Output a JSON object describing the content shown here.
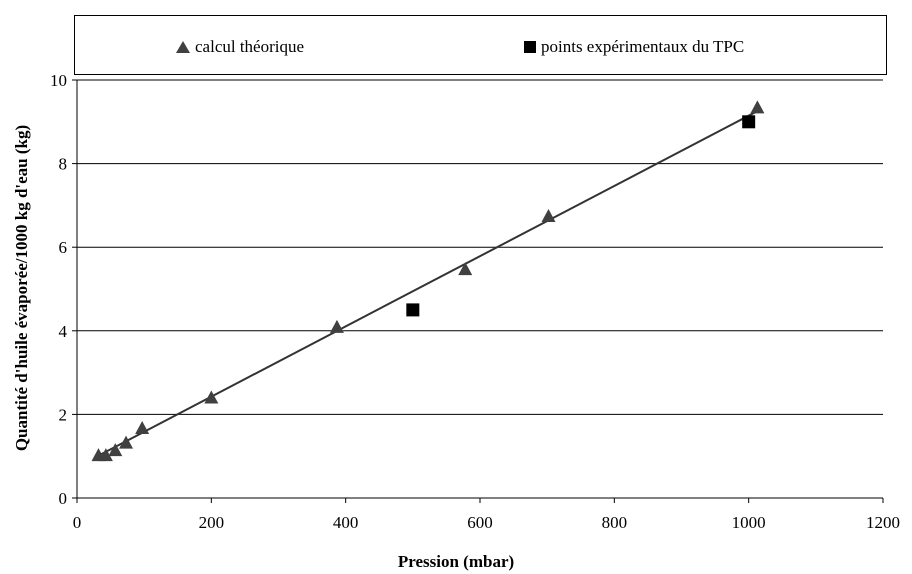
{
  "chart_data": {
    "type": "scatter",
    "title": "",
    "xlabel": "Pression (mbar)",
    "ylabel": "Quantité d'huile évaporée/1000 kg d'eau (kg)",
    "xlim": [
      0,
      1200
    ],
    "ylim": [
      0,
      10
    ],
    "x_ticks": [
      "0",
      "200",
      "400",
      "600",
      "800",
      "1000",
      "1200"
    ],
    "y_ticks": [
      "0",
      "2",
      "4",
      "6",
      "8",
      "10"
    ],
    "grid": "horizontal",
    "legend_position": "top",
    "series": [
      {
        "name": "calcul théorique",
        "marker": "triangle",
        "color": "#404040",
        "points": [
          {
            "x": 32,
            "y": 1.0
          },
          {
            "x": 43,
            "y": 1.0
          },
          {
            "x": 57,
            "y": 1.12
          },
          {
            "x": 73,
            "y": 1.3
          },
          {
            "x": 97,
            "y": 1.65
          },
          {
            "x": 200,
            "y": 2.38
          },
          {
            "x": 387,
            "y": 4.07
          },
          {
            "x": 578,
            "y": 5.45
          },
          {
            "x": 702,
            "y": 6.72
          },
          {
            "x": 1013,
            "y": 9.32
          }
        ]
      },
      {
        "name": "points expérimentaux du TPC",
        "marker": "square",
        "color": "#000000",
        "points": [
          {
            "x": 500,
            "y": 4.5
          },
          {
            "x": 1000,
            "y": 9.0
          }
        ]
      }
    ],
    "trendline": {
      "color": "#333333",
      "from": {
        "x": 28,
        "y": 0.98
      },
      "to": {
        "x": 1010,
        "y": 9.23
      }
    }
  }
}
